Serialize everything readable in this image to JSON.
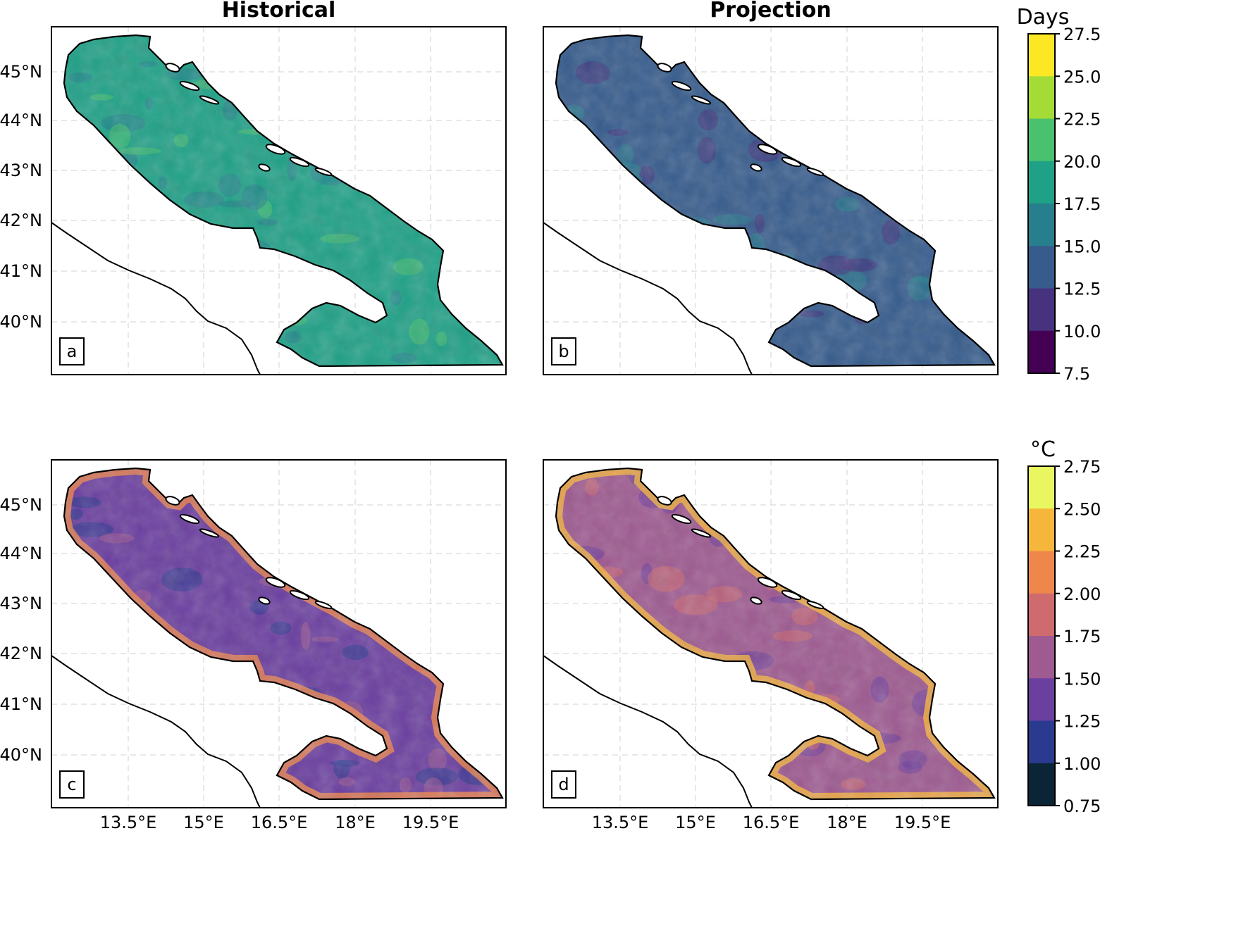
{
  "figure": {
    "col_titles": [
      "Historical",
      "Projection"
    ],
    "lat_labels": [
      "45°N",
      "44°N",
      "43°N",
      "42°N",
      "41°N",
      "40°N"
    ],
    "lon_labels": [
      "13.5°E",
      "15°E",
      "16.5°E",
      "18°E",
      "19.5°E"
    ]
  },
  "panels": [
    {
      "label": "a",
      "variable": "days",
      "level": 0.58
    },
    {
      "label": "b",
      "variable": "days",
      "level": 0.22
    },
    {
      "label": "c",
      "variable": "temp",
      "level": 0.32
    },
    {
      "label": "d",
      "variable": "temp",
      "level": 0.36
    }
  ],
  "colorbars": [
    {
      "title": "Days",
      "ticks": [
        "27.5",
        "25.0",
        "22.5",
        "20.0",
        "17.5",
        "15.0",
        "12.5",
        "10.0",
        "7.5"
      ],
      "colors": [
        "#fde725",
        "#a5db36",
        "#4ac16d",
        "#1fa187",
        "#277f8e",
        "#365c8d",
        "#46327e",
        "#440154"
      ]
    },
    {
      "title": "°C",
      "ticks": [
        "2.75",
        "2.50",
        "2.25",
        "2.00",
        "1.75",
        "1.50",
        "1.25",
        "1.00",
        "0.75"
      ],
      "colors": [
        "#e8f75f",
        "#f6b63c",
        "#ef874b",
        "#cf6b6e",
        "#9e5a91",
        "#6b3fa0",
        "#2a3a8f",
        "#0c2536"
      ]
    }
  ]
}
